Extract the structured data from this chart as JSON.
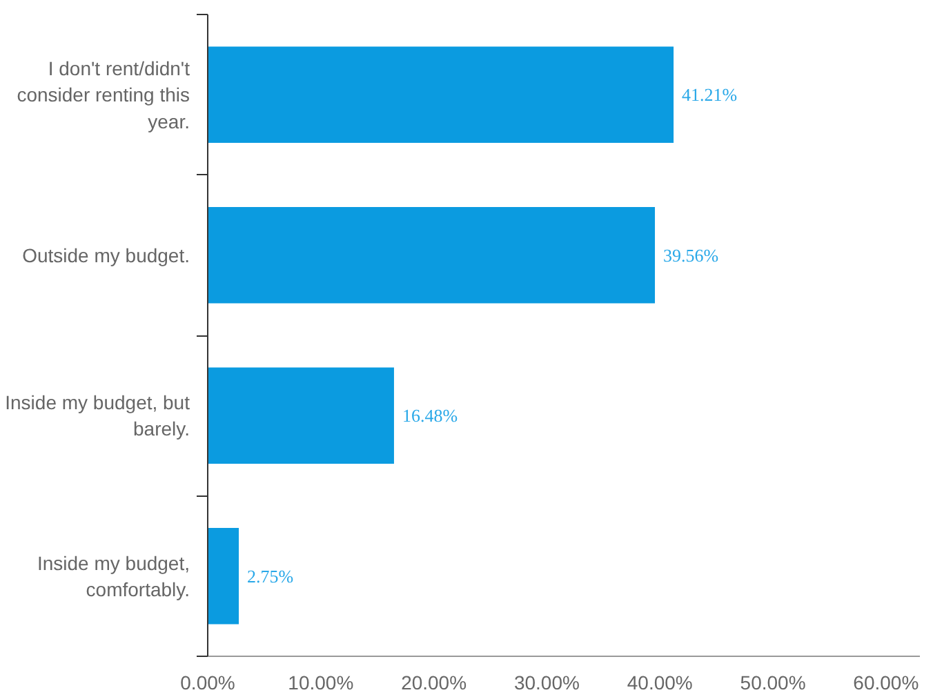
{
  "chart_data": {
    "type": "bar",
    "orientation": "horizontal",
    "categories": [
      "I don't rent/didn't consider renting this year.",
      "Outside my budget.",
      "Inside my budget, but barely.",
      "Inside my budget, comfortably."
    ],
    "values": [
      41.21,
      39.56,
      16.48,
      2.75
    ],
    "value_labels": [
      "41.21%",
      "39.56%",
      "16.48%",
      "2.75%"
    ],
    "color": "#0b9be0",
    "xlim": [
      0,
      63
    ],
    "xticks": [
      {
        "value": 0,
        "label": "0.00%"
      },
      {
        "value": 10,
        "label": "10.00%"
      },
      {
        "value": 20,
        "label": "20.00%"
      },
      {
        "value": 30,
        "label": "30.00%"
      },
      {
        "value": 40,
        "label": "40.00%"
      },
      {
        "value": 50,
        "label": "50.00%"
      },
      {
        "value": 60,
        "label": "60.00%"
      }
    ],
    "grid": false
  }
}
